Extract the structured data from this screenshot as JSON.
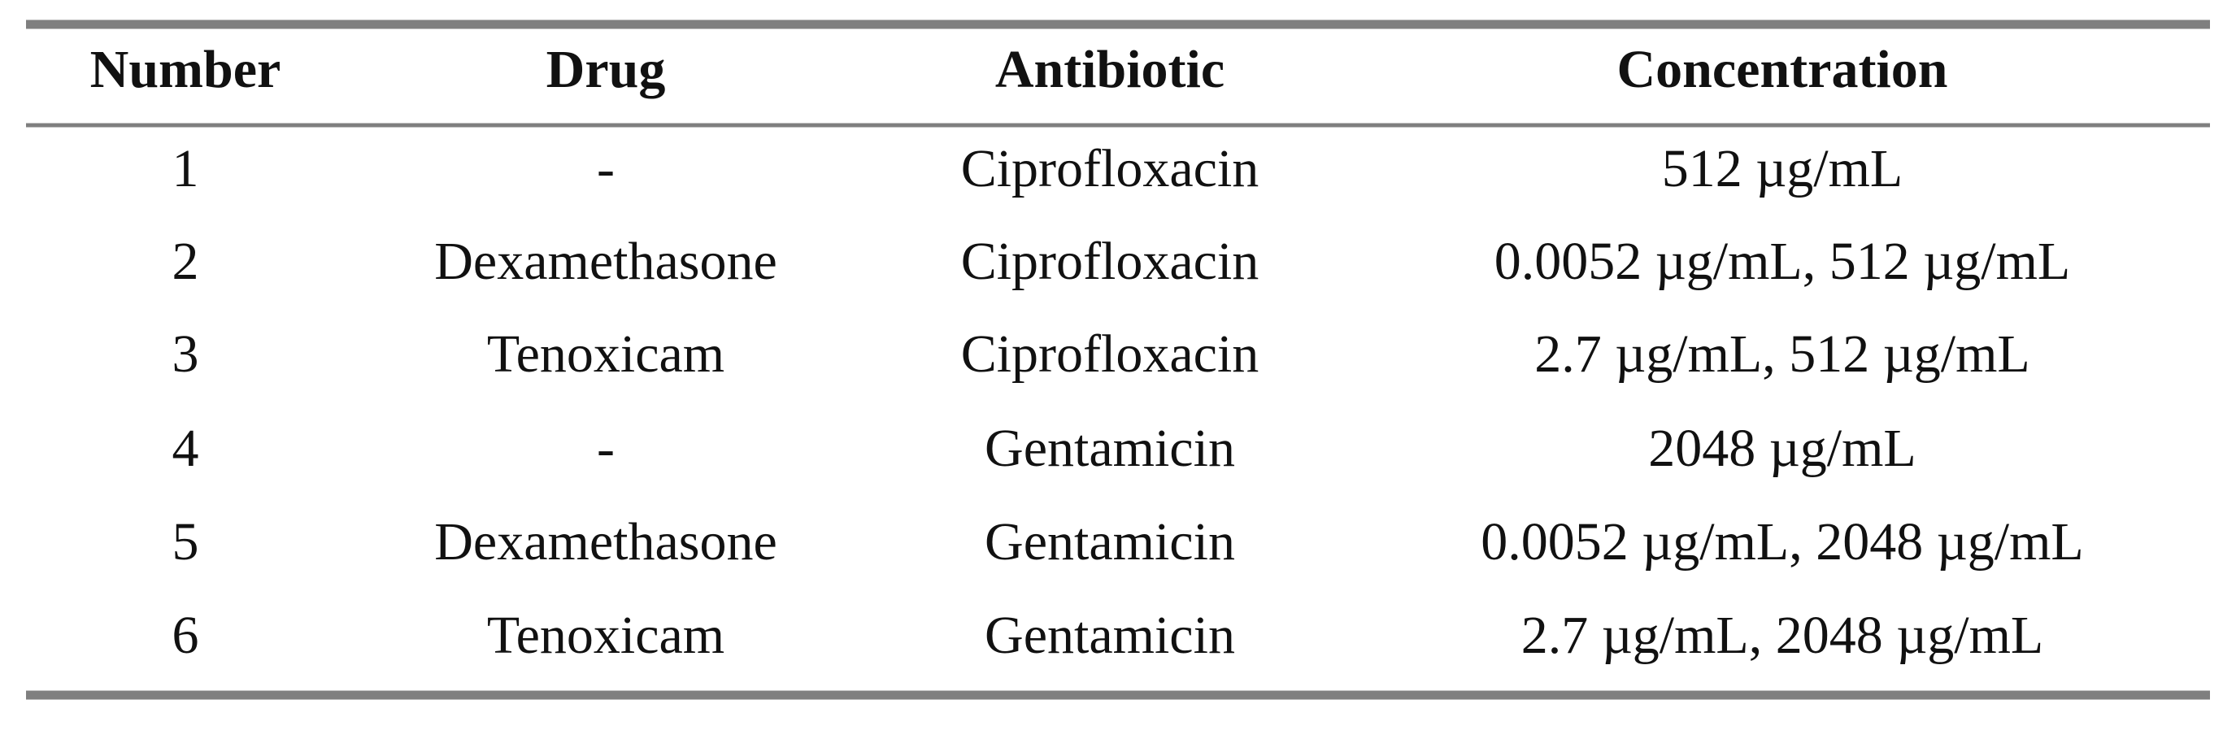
{
  "table": {
    "header": [
      "Number",
      "Drug",
      "Antibiotic",
      "Concentration"
    ],
    "rows": [
      [
        "1",
        "-",
        "Ciprofloxacin",
        "512 µg/mL"
      ],
      [
        "2",
        "Dexamethasone",
        "Ciprofloxacin",
        "0.0052 µg/mL, 512 µg/mL"
      ],
      [
        "3",
        "Tenoxicam",
        "Ciprofloxacin",
        "2.7 µg/mL, 512 µg/mL"
      ],
      [
        "4",
        "-",
        "Gentamicin",
        "2048 µg/mL"
      ],
      [
        "5",
        "Dexamethasone",
        "Gentamicin",
        "0.0052 µg/mL, 2048 µg/mL"
      ],
      [
        "6",
        "Tenoxicam",
        "Gentamicin",
        "2.7 µg/mL, 2048 µg/mL"
      ]
    ]
  }
}
